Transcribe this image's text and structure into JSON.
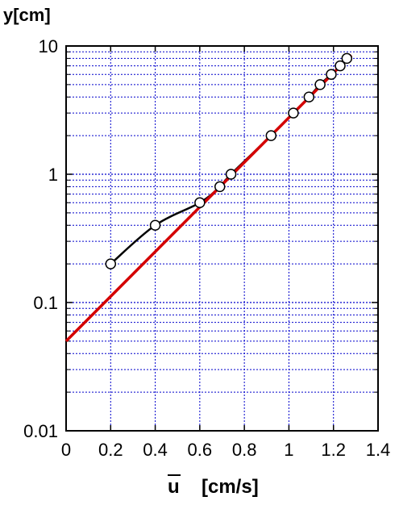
{
  "chart_data": {
    "type": "scatter",
    "ylabel": "y[cm]",
    "xlabel": "u",
    "xlabel_unit": "[cm/s]",
    "xlim": [
      0,
      1.4
    ],
    "ylim": [
      0.01,
      10
    ],
    "yscale": "log",
    "xticks": [
      "0",
      "0.2",
      "0.4",
      "0.6",
      "0.8",
      "1",
      "1.2",
      "1.4"
    ],
    "yticks": [
      "0.01",
      "0.1",
      "1",
      "10"
    ],
    "grid": true,
    "colors": {
      "grid": "#0000cc",
      "data_curve": "#000000",
      "fit_line": "#d40000",
      "marker_fill": "#ffffff",
      "marker_edge": "#000000"
    },
    "series": [
      {
        "kind": "measured",
        "x": [
          0.2,
          0.4,
          0.6,
          0.69,
          0.74,
          0.92,
          1.02,
          1.09,
          1.14,
          1.19,
          1.23,
          1.26
        ],
        "y": [
          0.2,
          0.4,
          0.6,
          0.8,
          1.0,
          2.0,
          3.0,
          4.0,
          5.0,
          6.0,
          7.0,
          8.0
        ]
      },
      {
        "kind": "fit",
        "x": [
          0,
          1.28
        ],
        "y": [
          0.05,
          8.5
        ]
      }
    ]
  }
}
